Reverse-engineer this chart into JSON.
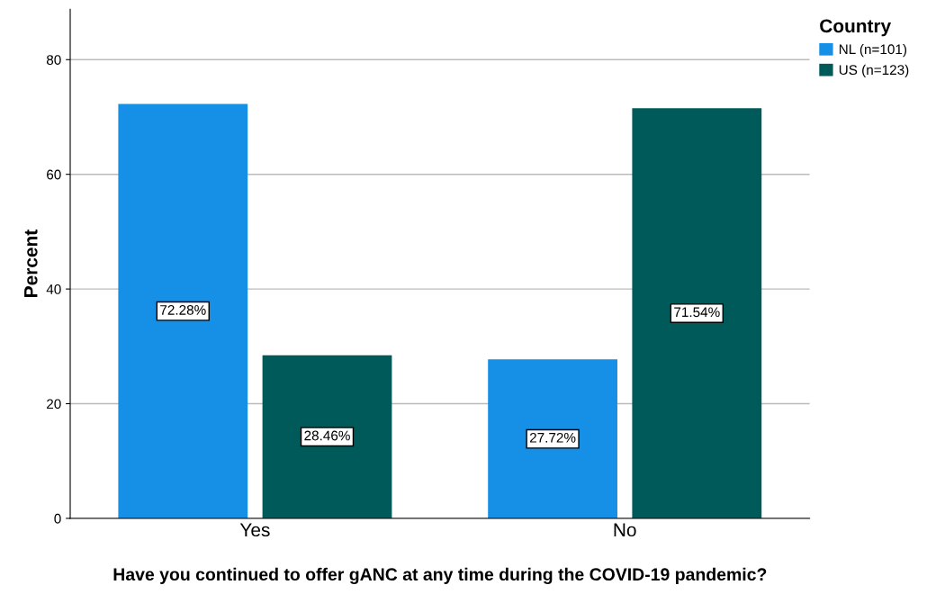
{
  "chart_data": {
    "type": "bar",
    "xlabel": "Have you continued to offer gANC at any time during the COVID-19 pandemic?",
    "ylabel": "Percent",
    "categories": [
      "Yes",
      "No"
    ],
    "series": [
      {
        "name": "NL (n=101)",
        "color": "#1590e6",
        "values": [
          72.28,
          27.72
        ],
        "value_labels": [
          "72.28%",
          "27.72%"
        ]
      },
      {
        "name": "US (n=123)",
        "color": "#005a5a",
        "values": [
          28.46,
          71.54
        ],
        "value_labels": [
          "28.46%",
          "71.54%"
        ]
      }
    ],
    "legend_title": "Country",
    "legend": "top right",
    "ylim": [
      0,
      88.8
    ],
    "yticks": [
      0,
      20,
      40,
      60,
      80
    ],
    "grid": "y"
  }
}
